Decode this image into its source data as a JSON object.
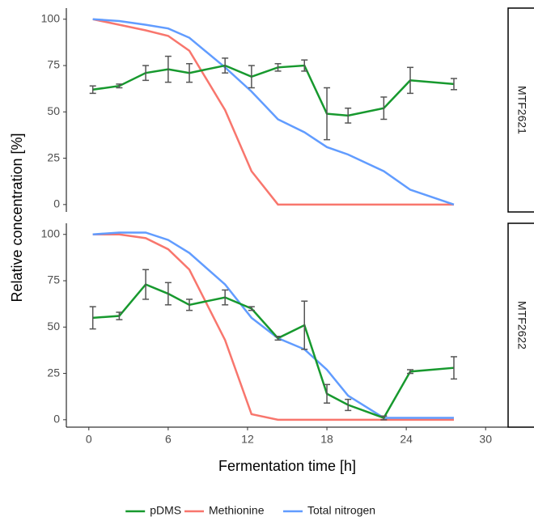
{
  "x_label": "Fermentation time [h]",
  "y_label": "Relative concentration [%]",
  "chart_data": [
    {
      "type": "line",
      "title": "MTF2621",
      "x": [
        0.3,
        2.3,
        4.3,
        6.0,
        7.6,
        10.3,
        12.3,
        14.3,
        16.3,
        18.0,
        19.6,
        22.3,
        24.3,
        27.6
      ],
      "xlim": [
        -1.7,
        31.7
      ],
      "ylim": [
        -4,
        106
      ],
      "yticks": [
        0,
        25,
        50,
        75,
        100
      ],
      "series": [
        {
          "name": "pDMS",
          "color": "#17992e",
          "values": [
            62,
            64,
            71,
            73,
            71,
            75,
            69,
            74,
            75,
            49,
            48,
            52,
            67,
            65
          ],
          "errors": [
            2,
            1,
            4,
            7,
            5,
            4,
            6,
            2,
            3,
            14,
            4,
            6,
            7,
            3
          ]
        },
        {
          "name": "Methionine",
          "color": "#f8766d",
          "values": [
            100,
            97,
            94,
            91,
            83,
            51,
            18,
            0,
            0,
            0,
            0,
            0,
            0,
            0
          ]
        },
        {
          "name": "Total nitrogen",
          "color": "#619cff",
          "values": [
            100,
            99,
            97,
            95,
            90,
            74,
            61,
            46,
            39,
            31,
            27,
            18,
            8,
            0
          ]
        }
      ]
    },
    {
      "type": "line",
      "title": "MTF2622",
      "x": [
        0.3,
        2.3,
        4.3,
        6.0,
        7.6,
        10.3,
        12.3,
        14.3,
        16.3,
        18.0,
        19.6,
        22.3,
        24.3,
        27.6
      ],
      "xlim": [
        -1.7,
        31.7
      ],
      "xticks": [
        0,
        6,
        12,
        18,
        24,
        30
      ],
      "ylim": [
        -4,
        106
      ],
      "yticks": [
        0,
        25,
        50,
        75,
        100
      ],
      "series": [
        {
          "color": "#17992e",
          "values": [
            55,
            56,
            73,
            68,
            62,
            66,
            60,
            44,
            51,
            14,
            8,
            1,
            26,
            28
          ],
          "errors": [
            6,
            2,
            8,
            6,
            3,
            4,
            1,
            1,
            13,
            5,
            3,
            1,
            1,
            6
          ]
        },
        {
          "color": "#f8766d",
          "values": [
            100,
            100,
            98,
            92,
            81,
            43,
            3,
            0,
            0,
            0,
            0,
            0,
            0,
            0
          ]
        },
        {
          "color": "#619cff",
          "values": [
            100,
            101,
            101,
            97,
            90,
            73,
            55,
            44,
            38,
            27,
            13,
            1,
            1,
            1
          ]
        }
      ]
    }
  ]
}
